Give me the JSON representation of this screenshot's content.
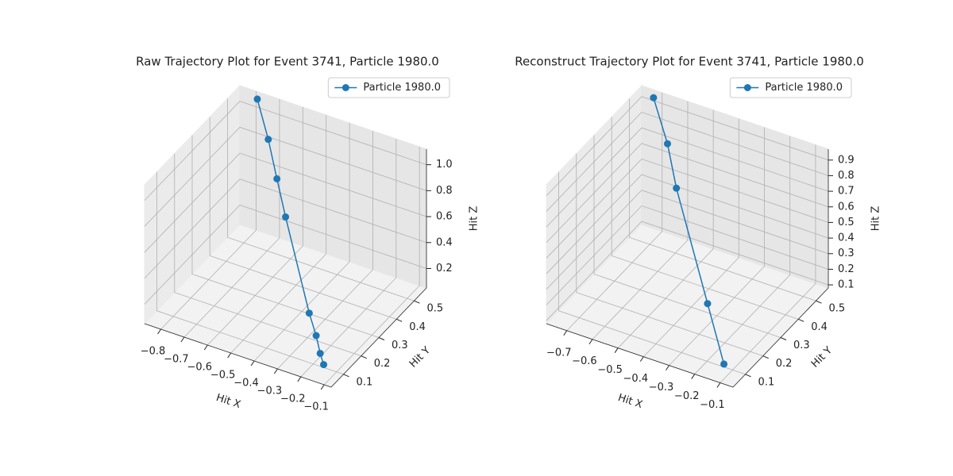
{
  "chart_data": [
    {
      "type": "line3d",
      "title": "Raw Trajectory Plot for Event 3741, Particle 1980.0",
      "xlabel": "Hit X",
      "ylabel": "Hit Y",
      "zlabel": "Hit Z",
      "xlim": [
        -0.87,
        -0.07
      ],
      "ylim": [
        0.03,
        0.57
      ],
      "zlim": [
        0.05,
        1.12
      ],
      "xticks": [
        {
          "value": -0.8,
          "label": "−0.8"
        },
        {
          "value": -0.7,
          "label": "−0.7"
        },
        {
          "value": -0.6,
          "label": "−0.6"
        },
        {
          "value": -0.5,
          "label": "−0.5"
        },
        {
          "value": -0.4,
          "label": "−0.4"
        },
        {
          "value": -0.3,
          "label": "−0.3"
        },
        {
          "value": -0.2,
          "label": "−0.2"
        },
        {
          "value": -0.1,
          "label": "−0.1"
        }
      ],
      "yticks": [
        0.1,
        0.2,
        0.3,
        0.4,
        0.5
      ],
      "zticks": [
        0.2,
        0.4,
        0.6,
        0.8,
        {
          "value": 1.0,
          "label": "1.0"
        }
      ],
      "grid": true,
      "legend_loc": "upper right",
      "series": [
        {
          "name": "Particle 1980.0",
          "color": "#1f77b4",
          "x": [
            -0.78,
            -0.68,
            -0.59,
            -0.5,
            -0.27,
            -0.21,
            -0.17,
            -0.14
          ],
          "y": [
            0.55,
            0.48,
            0.41,
            0.34,
            0.17,
            0.13,
            0.1,
            0.08
          ],
          "z": [
            1.1,
            0.95,
            0.8,
            0.66,
            0.3,
            0.22,
            0.15,
            0.11
          ]
        }
      ]
    },
    {
      "type": "line3d",
      "title": "Reconstruct Trajectory Plot for Event 3741, Particle 1980.0",
      "xlabel": "Hit X",
      "ylabel": "Hit Y",
      "zlabel": "Hit Z",
      "xlim": [
        -0.78,
        -0.05
      ],
      "ylim": [
        0.03,
        0.57
      ],
      "zlim": [
        0.08,
        0.97
      ],
      "xticks": [
        {
          "value": -0.7,
          "label": "−0.7"
        },
        {
          "value": -0.6,
          "label": "−0.6"
        },
        {
          "value": -0.5,
          "label": "−0.5"
        },
        {
          "value": -0.4,
          "label": "−0.4"
        },
        {
          "value": -0.3,
          "label": "−0.3"
        },
        {
          "value": -0.2,
          "label": "−0.2"
        },
        {
          "value": -0.1,
          "label": "−0.1"
        }
      ],
      "yticks": [
        0.1,
        0.2,
        0.3,
        0.4,
        0.5
      ],
      "zticks": [
        0.1,
        0.2,
        0.3,
        0.4,
        0.5,
        0.6,
        0.7,
        0.8,
        0.9
      ],
      "grid": true,
      "legend_loc": "upper right",
      "series": [
        {
          "name": "Particle 1980.0",
          "color": "#1f77b4",
          "x": [
            -0.72,
            -0.61,
            -0.52,
            -0.26,
            -0.12
          ],
          "y": [
            0.55,
            0.47,
            0.39,
            0.19,
            0.08
          ],
          "z": [
            0.95,
            0.81,
            0.67,
            0.31,
            0.13
          ]
        }
      ]
    }
  ]
}
